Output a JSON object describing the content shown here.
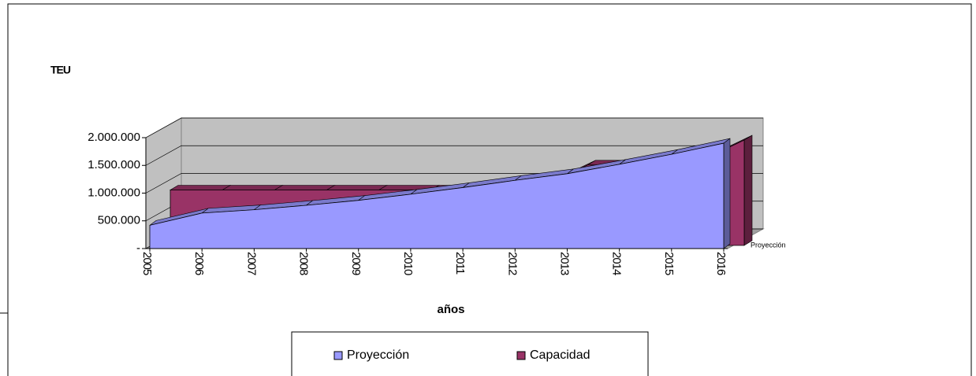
{
  "chart_data": {
    "type": "area3d",
    "y_label": "TEU",
    "x_label": "años",
    "depth_label": "Proyección",
    "categories": [
      "2005",
      "2006",
      "2007",
      "2008",
      "2009",
      "2010",
      "2011",
      "2012",
      "2013",
      "2014",
      "2015",
      "2016"
    ],
    "series": [
      {
        "name": "Proyección",
        "color": "#9999ff",
        "values": [
          420000,
          640000,
          700000,
          780000,
          870000,
          980000,
          1100000,
          1230000,
          1350000,
          1520000,
          1700000,
          1900000
        ]
      },
      {
        "name": "Capacidad",
        "color": "#993366",
        "values": [
          1000000,
          1000000,
          1000000,
          1000000,
          1000000,
          1000000,
          1000000,
          1000000,
          1450000,
          1450000,
          1450000,
          1900000
        ]
      }
    ],
    "ylim": [
      0,
      2000000
    ],
    "yticks": [
      {
        "value": 0,
        "label": "-"
      },
      {
        "value": 500000,
        "label": "500.000"
      },
      {
        "value": 1000000,
        "label": "1.000.000"
      },
      {
        "value": 1500000,
        "label": "1.500.000"
      },
      {
        "value": 2000000,
        "label": "2.000.000"
      }
    ],
    "grid": true
  }
}
